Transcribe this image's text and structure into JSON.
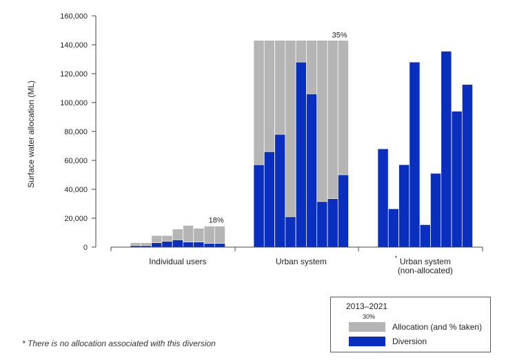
{
  "chart_data": {
    "type": "bar",
    "ylabel": "Surface water allocation (ML)",
    "ylim": [
      0,
      160000
    ],
    "yticks": [
      0,
      20000,
      40000,
      60000,
      80000,
      100000,
      120000,
      140000,
      160000
    ],
    "ytick_labels": [
      "0",
      "20,000",
      "40,000",
      "60,000",
      "80,000",
      "100,000",
      "120,000",
      "140,000",
      "160,000"
    ],
    "groups": [
      {
        "label": "Individual users",
        "allocation": [
          3000,
          3000,
          8000,
          8000,
          12500,
          15000,
          13000,
          14500,
          14500
        ],
        "diversion": [
          1000,
          1000,
          3000,
          4000,
          5000,
          3500,
          3500,
          2500,
          2500
        ],
        "pct_label": "18%"
      },
      {
        "label": "Urban system",
        "allocation": [
          143000,
          143000,
          143000,
          143000,
          143000,
          143000,
          143000,
          143000,
          143000
        ],
        "diversion": [
          57000,
          66000,
          78000,
          21000,
          128000,
          106000,
          31500,
          33500,
          50000
        ],
        "pct_label": "35%"
      },
      {
        "label": "Urban system\n(non-allocated)",
        "label_lines": [
          "Urban system",
          "(non-allocated)"
        ],
        "label_marker": "*",
        "allocation": [],
        "diversion": [
          68000,
          26500,
          57000,
          128000,
          15500,
          51000,
          135500,
          94000,
          112500
        ],
        "pct_label": ""
      }
    ],
    "colors": {
      "allocation": "#b5b5b5",
      "diversion": "#0a2fbf",
      "axis": "#444444"
    }
  },
  "legend": {
    "title": "2013–2021",
    "sample_pct": "30%",
    "allocation_label": "Allocation (and % taken)",
    "diversion_label": "Diversion"
  },
  "footnote": "* There is no allocation associated with this diversion"
}
